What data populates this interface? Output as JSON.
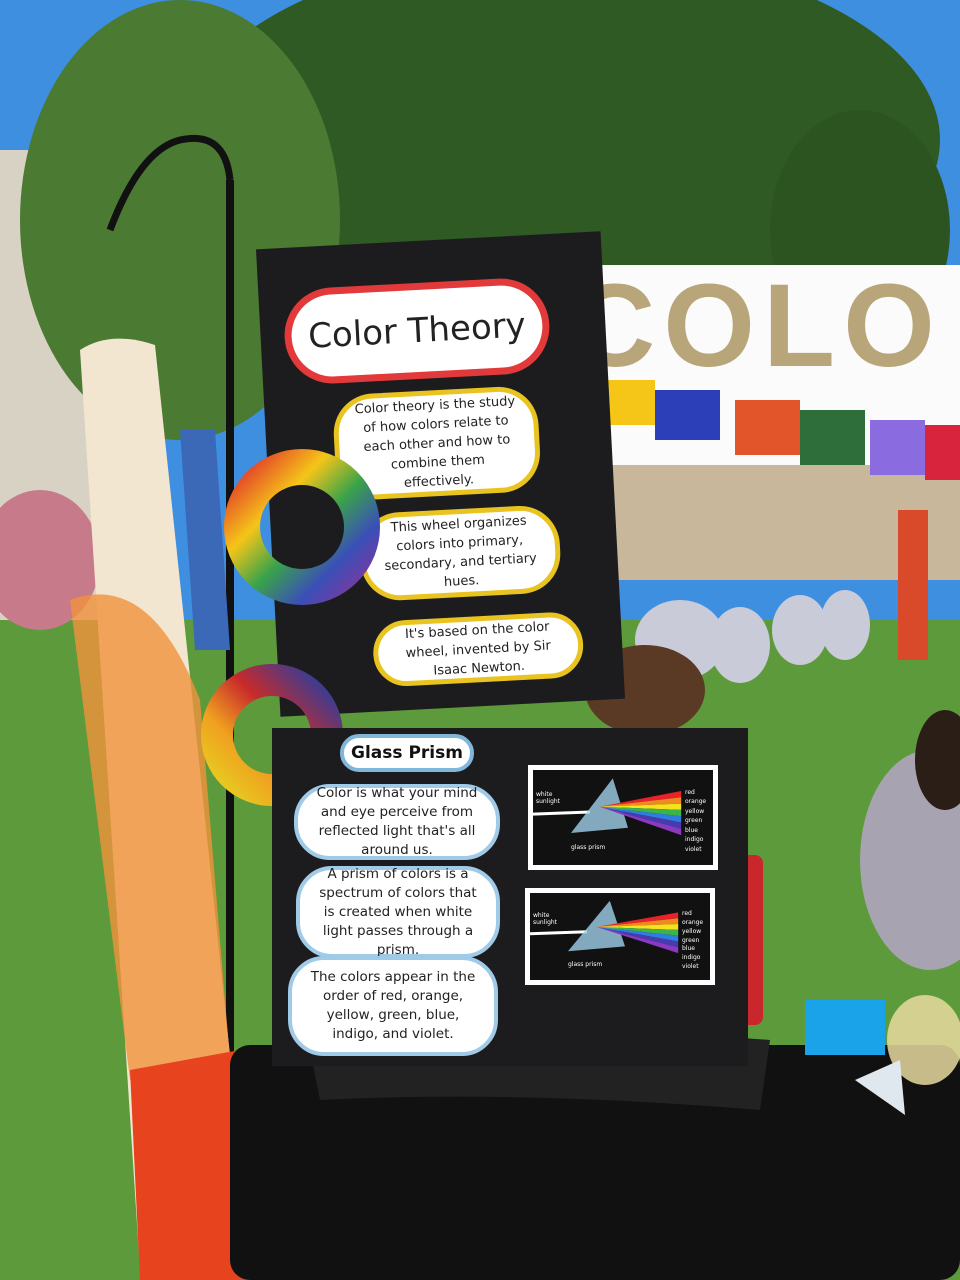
{
  "banner": {
    "text": "COLO"
  },
  "poster_color_theory": {
    "title": "Color Theory",
    "paragraphs": [
      "Color theory is the study of how colors relate to each other and how to combine them effectively.",
      "This wheel organizes colors into primary, secondary, and tertiary hues.",
      "It's based on the color wheel, invented by Sir Isaac Newton."
    ]
  },
  "poster_glass_prism": {
    "title": "Glass Prism",
    "paragraphs": [
      "Color is what your mind and eye perceive from reflected light that's all around us.",
      "A prism of colors is a spectrum of colors that is created when white light passes through a prism.",
      "The colors appear in the order of red, orange, yellow, green, blue, indigo, and violet."
    ],
    "diagrams": [
      {
        "source": "white sunlight",
        "prism": "glass prism",
        "spectrum": [
          "red",
          "orange",
          "yellow",
          "green",
          "blue",
          "indigo",
          "violet"
        ]
      },
      {
        "source": "white sunlight",
        "prism": "glass prism",
        "spectrum": [
          "red",
          "orange",
          "yellow",
          "green",
          "blue",
          "indigo",
          "violet"
        ]
      }
    ]
  }
}
